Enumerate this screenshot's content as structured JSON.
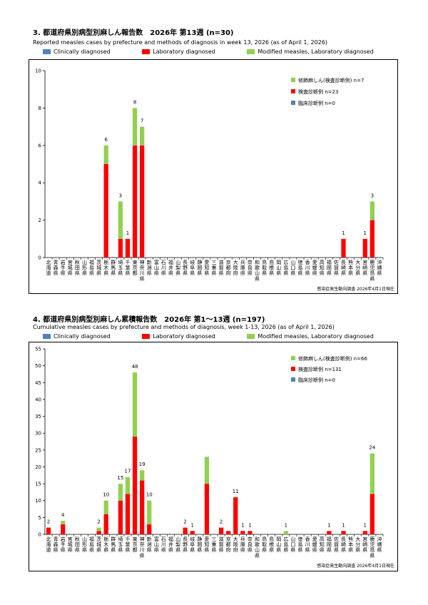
{
  "colors": {
    "clinical": "#4f81bd",
    "lab": "#ff0000",
    "modified": "#92d050"
  },
  "legend_labels": {
    "clinical": "Clinically diagnosed",
    "lab": "Laboratory diagnosed",
    "modified": "Modified measles, Laboratory diagnosed"
  },
  "prefectures": [
    [
      "北",
      "海",
      "道"
    ],
    [
      "青",
      "森",
      "県"
    ],
    [
      "岩",
      "手",
      "県"
    ],
    [
      "宮",
      "城",
      "県"
    ],
    [
      "秋",
      "田",
      "県"
    ],
    [
      "山",
      "形",
      "県"
    ],
    [
      "福",
      "島",
      "県"
    ],
    [
      "茨",
      "城",
      "県"
    ],
    [
      "栃",
      "木",
      "県"
    ],
    [
      "群",
      "馬",
      "県"
    ],
    [
      "埼",
      "玉",
      "県"
    ],
    [
      "千",
      "葉",
      "県"
    ],
    [
      "東",
      "京",
      "都"
    ],
    [
      "神",
      "奈",
      "川",
      "県"
    ],
    [
      "新",
      "潟",
      "県"
    ],
    [
      "富",
      "山",
      "県"
    ],
    [
      "石",
      "川",
      "県"
    ],
    [
      "福",
      "井",
      "県"
    ],
    [
      "山",
      "梨",
      "県"
    ],
    [
      "長",
      "野",
      "県"
    ],
    [
      "岐",
      "阜",
      "県"
    ],
    [
      "静",
      "岡",
      "県"
    ],
    [
      "愛",
      "知",
      "県"
    ],
    [
      "三",
      "重",
      "県"
    ],
    [
      "滋",
      "賀",
      "県"
    ],
    [
      "京",
      "都",
      "府"
    ],
    [
      "大",
      "阪",
      "府"
    ],
    [
      "兵",
      "庫",
      "県"
    ],
    [
      "奈",
      "良",
      "県"
    ],
    [
      "和",
      "歌",
      "山",
      "県"
    ],
    [
      "鳥",
      "取",
      "県"
    ],
    [
      "島",
      "根",
      "県"
    ],
    [
      "岡",
      "山",
      "県"
    ],
    [
      "広",
      "島",
      "県"
    ],
    [
      "山",
      "口",
      "県"
    ],
    [
      "徳",
      "島",
      "県"
    ],
    [
      "香",
      "川",
      "県"
    ],
    [
      "愛",
      "媛",
      "県"
    ],
    [
      "高",
      "知",
      "県"
    ],
    [
      "福",
      "岡",
      "県"
    ],
    [
      "佐",
      "賀",
      "県"
    ],
    [
      "長",
      "崎",
      "県"
    ],
    [
      "熊",
      "本",
      "県"
    ],
    [
      "大",
      "分",
      "県"
    ],
    [
      "宮",
      "崎",
      "県"
    ],
    [
      "鹿",
      "児",
      "島",
      "県"
    ],
    [
      "沖",
      "縄",
      "県"
    ]
  ],
  "chart_data": [
    {
      "type": "bar",
      "stacked": true,
      "title": "3. 都道府県別病型別麻しん報告数　2026年 第13週 (n=30)",
      "subtitle": "Reported measles cases by prefecture and methods of diagnosis in week 13, 2026 (as of April 1, 2026)",
      "inner_legend": [
        "修飾麻しん(検査診断例) n=7",
        "検査診断例 n=23",
        "臨床診断例 n=0"
      ],
      "source": "感染症発生動向調査 2026年4月1日現在",
      "ylim": [
        0,
        10
      ],
      "yticks": [
        0,
        2,
        4,
        6,
        8,
        10
      ],
      "totals_label_indices": [
        8,
        10,
        11,
        12,
        13,
        41,
        44,
        45
      ],
      "series": [
        {
          "name": "Clinically diagnosed",
          "key": "clinical",
          "values": [
            0,
            0,
            0,
            0,
            0,
            0,
            0,
            0,
            0,
            0,
            0,
            0,
            0,
            0,
            0,
            0,
            0,
            0,
            0,
            0,
            0,
            0,
            0,
            0,
            0,
            0,
            0,
            0,
            0,
            0,
            0,
            0,
            0,
            0,
            0,
            0,
            0,
            0,
            0,
            0,
            0,
            0,
            0,
            0,
            0,
            0,
            0
          ]
        },
        {
          "name": "Laboratory diagnosed",
          "key": "lab",
          "values": [
            0,
            0,
            0,
            0,
            0,
            0,
            0,
            0,
            5,
            0,
            1,
            1,
            6,
            6,
            0,
            0,
            0,
            0,
            0,
            0,
            0,
            0,
            0,
            0,
            0,
            0,
            0,
            0,
            0,
            0,
            0,
            0,
            0,
            0,
            0,
            0,
            0,
            0,
            0,
            0,
            0,
            1,
            0,
            0,
            1,
            2,
            0
          ]
        },
        {
          "name": "Modified measles, Laboratory diagnosed",
          "key": "modified",
          "values": [
            0,
            0,
            0,
            0,
            0,
            0,
            0,
            0,
            1,
            0,
            2,
            0,
            2,
            1,
            0,
            0,
            0,
            0,
            0,
            0,
            0,
            0,
            0,
            0,
            0,
            0,
            0,
            0,
            0,
            0,
            0,
            0,
            0,
            0,
            0,
            0,
            0,
            0,
            0,
            0,
            0,
            0,
            0,
            0,
            0,
            1,
            0
          ]
        }
      ]
    },
    {
      "type": "bar",
      "stacked": true,
      "title": "4. 都道府県別病型別麻しん累積報告数　2026年 第1～13週 (n=197)",
      "subtitle": "Cumulative measles cases by prefecture and methods of diagnosis, week 1-13, 2026 (as of April 1, 2026)",
      "inner_legend": [
        "修飾麻しん(検査診断例) n=66",
        "検査診断例 n=131",
        "臨床診断例 n=0"
      ],
      "source": "感染症発生動向調査 2026年4月1日現在",
      "ylim": [
        0,
        55
      ],
      "yticks": [
        0,
        5,
        10,
        15,
        20,
        25,
        30,
        35,
        40,
        45,
        50,
        55
      ],
      "totals_label_indices": [
        0,
        2,
        7,
        8,
        10,
        11,
        12,
        13,
        14,
        19,
        20,
        21,
        23,
        24,
        26,
        27,
        28,
        33,
        39,
        41,
        44,
        45
      ],
      "series": [
        {
          "name": "Clinically diagnosed",
          "key": "clinical",
          "values": [
            0,
            0,
            0,
            0,
            0,
            0,
            0,
            0,
            0,
            0,
            0,
            0,
            0,
            0,
            0,
            0,
            0,
            0,
            0,
            0,
            0,
            0,
            0,
            0,
            0,
            0,
            0,
            0,
            0,
            0,
            0,
            0,
            0,
            0,
            0,
            0,
            0,
            0,
            0,
            0,
            0,
            0,
            0,
            0,
            0,
            0,
            0
          ]
        },
        {
          "name": "Laboratory diagnosed",
          "key": "lab",
          "values": [
            2,
            0,
            3,
            0,
            0,
            0,
            0,
            1,
            6,
            0,
            10,
            12,
            29,
            16,
            3,
            0,
            0,
            0,
            0,
            2,
            1,
            0,
            15,
            0,
            2,
            1,
            11,
            1,
            1,
            0,
            0,
            0,
            0,
            0,
            0,
            0,
            0,
            0,
            0,
            1,
            0,
            1,
            0,
            0,
            1,
            12,
            0
          ]
        },
        {
          "name": "Modified measles, Laboratory diagnosed",
          "key": "modified",
          "values": [
            0,
            0,
            1,
            0,
            0,
            0,
            0,
            1,
            4,
            0,
            5,
            5,
            19,
            3,
            7,
            0,
            0,
            0,
            0,
            0,
            0,
            0,
            8,
            0,
            0,
            0,
            0,
            0,
            0,
            0,
            0,
            0,
            0,
            1,
            0,
            0,
            0,
            0,
            0,
            0,
            0,
            0,
            0,
            0,
            0,
            12,
            0
          ]
        }
      ]
    }
  ]
}
